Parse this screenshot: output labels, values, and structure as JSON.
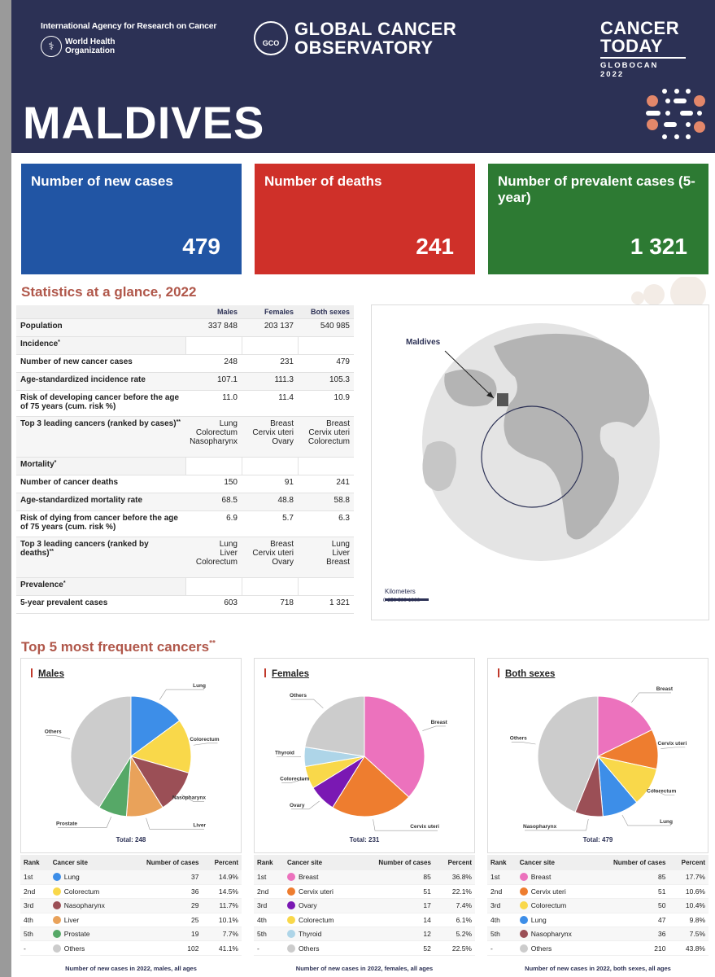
{
  "header": {
    "iarc": "International Agency for Research on Cancer",
    "who_line1": "World Health",
    "who_line2": "Organization",
    "gco_emblem": "GCO",
    "gco_line1": "GLOBAL CANCER",
    "gco_line2": "OBSERVATORY",
    "ct_line1": "CANCER",
    "ct_line2": "TODAY",
    "ct_sub": "GLOBOCAN 2022",
    "country": "MALDIVES"
  },
  "summary": {
    "new_cases_label": "Number of new cases",
    "new_cases_value": "479",
    "deaths_label": "Number of deaths",
    "deaths_value": "241",
    "prevalent_label": "Number of prevalent cases (5-year)",
    "prevalent_value": "1 321"
  },
  "colors": {
    "header": "#2c3155",
    "new_cases": "#2155a4",
    "deaths": "#cf3029",
    "prevalent": "#2d7a33",
    "accent": "#b0574a"
  },
  "stats": {
    "title": "Statistics at a glance, 2022",
    "cols": [
      "Males",
      "Females",
      "Both sexes"
    ],
    "population": {
      "label": "Population",
      "v": [
        "337 848",
        "203 137",
        "540 985"
      ]
    },
    "incidence": "Incidence",
    "new_cases": {
      "label": "Number of new cancer cases",
      "v": [
        "248",
        "231",
        "479"
      ]
    },
    "asr_inc": {
      "label": "Age-standardized incidence rate",
      "v": [
        "107.1",
        "111.3",
        "105.3"
      ]
    },
    "risk_dev": {
      "label": "Risk of developing cancer before the age of 75 years (cum. risk %)",
      "v": [
        "11.0",
        "11.4",
        "10.9"
      ]
    },
    "top3_cases": {
      "label": "Top 3 leading cancers (ranked by cases)",
      "m": [
        "Lung",
        "Colorectum",
        "Nasopharynx"
      ],
      "f": [
        "Breast",
        "Cervix uteri",
        "Ovary"
      ],
      "b": [
        "Breast",
        "Cervix uteri",
        "Colorectum"
      ]
    },
    "mortality": "Mortality",
    "deaths": {
      "label": "Number of cancer deaths",
      "v": [
        "150",
        "91",
        "241"
      ]
    },
    "asr_mort": {
      "label": "Age-standardized mortality rate",
      "v": [
        "68.5",
        "48.8",
        "58.8"
      ]
    },
    "risk_die": {
      "label": "Risk of dying from cancer before the age of 75 years (cum. risk %)",
      "v": [
        "6.9",
        "5.7",
        "6.3"
      ]
    },
    "top3_deaths": {
      "label": "Top 3 leading cancers (ranked by deaths)",
      "m": [
        "Lung",
        "Liver",
        "Colorectum"
      ],
      "f": [
        "Breast",
        "Cervix uteri",
        "Ovary"
      ],
      "b": [
        "Lung",
        "Liver",
        "Breast"
      ]
    },
    "prevalence": "Prevalence",
    "prev5": {
      "label": "5-year prevalent cases",
      "v": [
        "603",
        "718",
        "1 321"
      ]
    }
  },
  "map": {
    "label": "Maldives",
    "scale_label": "Kilometers",
    "scale_nums": "0  250 500      1000"
  },
  "top5": {
    "title": "Top 5 most frequent cancers",
    "col_rank": "Rank",
    "col_site": "Cancer site",
    "col_cases": "Number of cases",
    "col_pct": "Percent"
  },
  "chart_data": [
    {
      "type": "pie",
      "title": "Males",
      "total": "Total: 248",
      "caption": "Number of new cases in 2022, males, all ages",
      "slices": [
        {
          "rank": "1st",
          "name": "Lung",
          "value": 37,
          "pct": "14.9%",
          "color": "#3d8ee8"
        },
        {
          "rank": "2nd",
          "name": "Colorectum",
          "value": 36,
          "pct": "14.5%",
          "color": "#f9d84a"
        },
        {
          "rank": "3rd",
          "name": "Nasopharynx",
          "value": 29,
          "pct": "11.7%",
          "color": "#9b4f56"
        },
        {
          "rank": "4th",
          "name": "Liver",
          "value": 25,
          "pct": "10.1%",
          "color": "#e9a25a"
        },
        {
          "rank": "5th",
          "name": "Prostate",
          "value": 19,
          "pct": "7.7%",
          "color": "#56a867"
        },
        {
          "rank": "-",
          "name": "Others",
          "value": 102,
          "pct": "41.1%",
          "color": "#cccccc"
        }
      ]
    },
    {
      "type": "pie",
      "title": "Females",
      "total": "Total: 231",
      "caption": "Number of new cases in 2022, females, all ages",
      "slices": [
        {
          "rank": "1st",
          "name": "Breast",
          "value": 85,
          "pct": "36.8%",
          "color": "#ec72bd"
        },
        {
          "rank": "2nd",
          "name": "Cervix uteri",
          "value": 51,
          "pct": "22.1%",
          "color": "#ee7d2f"
        },
        {
          "rank": "3rd",
          "name": "Ovary",
          "value": 17,
          "pct": "7.4%",
          "color": "#7a18b3"
        },
        {
          "rank": "4th",
          "name": "Colorectum",
          "value": 14,
          "pct": "6.1%",
          "color": "#f9d84a"
        },
        {
          "rank": "5th",
          "name": "Thyroid",
          "value": 12,
          "pct": "5.2%",
          "color": "#aed5e8"
        },
        {
          "rank": "-",
          "name": "Others",
          "value": 52,
          "pct": "22.5%",
          "color": "#cccccc"
        }
      ]
    },
    {
      "type": "pie",
      "title": "Both sexes",
      "total": "Total: 479",
      "caption": "Number of new cases in 2022, both sexes, all ages",
      "slices": [
        {
          "rank": "1st",
          "name": "Breast",
          "value": 85,
          "pct": "17.7%",
          "color": "#ec72bd"
        },
        {
          "rank": "2nd",
          "name": "Cervix uteri",
          "value": 51,
          "pct": "10.6%",
          "color": "#ee7d2f"
        },
        {
          "rank": "3rd",
          "name": "Colorectum",
          "value": 50,
          "pct": "10.4%",
          "color": "#f9d84a"
        },
        {
          "rank": "4th",
          "name": "Lung",
          "value": 47,
          "pct": "9.8%",
          "color": "#3d8ee8"
        },
        {
          "rank": "5th",
          "name": "Nasopharynx",
          "value": 36,
          "pct": "7.5%",
          "color": "#9b4f56"
        },
        {
          "rank": "-",
          "name": "Others",
          "value": 210,
          "pct": "43.8%",
          "color": "#cccccc"
        }
      ]
    }
  ]
}
